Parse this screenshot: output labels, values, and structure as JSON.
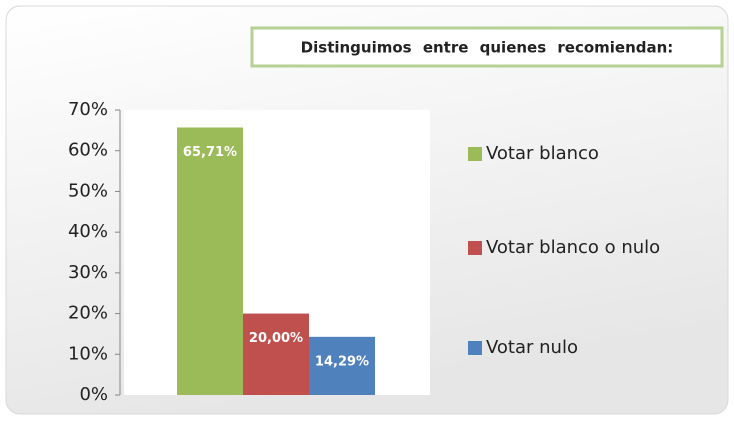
{
  "chart_data": {
    "type": "bar",
    "title": "Distinguimos entre quienes recomiendan:",
    "series": [
      {
        "name": "Votar blanco",
        "color": "#9bbb59",
        "values": [
          65.71
        ],
        "value_labels": [
          "65,71%"
        ]
      },
      {
        "name": "Votar blanco o nulo",
        "color": "#c0504d",
        "values": [
          20
        ],
        "value_labels": [
          "20,00%"
        ]
      },
      {
        "name": "Votar nulo",
        "color": "#4f81bd",
        "values": [
          14.29
        ],
        "value_labels": [
          "14,29%"
        ]
      }
    ],
    "ylim": [
      0,
      70
    ],
    "yticks": [
      {
        "value": 0,
        "label": "0%"
      },
      {
        "value": 10,
        "label": "10%"
      },
      {
        "value": 20,
        "label": "20%"
      },
      {
        "value": 30,
        "label": "30%"
      },
      {
        "value": 40,
        "label": "40%"
      },
      {
        "value": 50,
        "label": "50%"
      },
      {
        "value": 60,
        "label": "60%"
      },
      {
        "value": 70,
        "label": "70%"
      }
    ],
    "legend": "right"
  }
}
